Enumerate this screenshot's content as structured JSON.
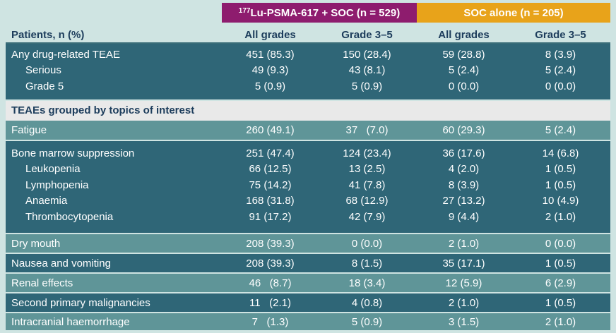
{
  "header": {
    "group_lu_iso": "177",
    "group_lu_rest": "Lu-PSMA-617 + SOC (n = 529)",
    "group_soc": "SOC alone (n = 205)",
    "patients_label": "Patients, n (%)",
    "cols": [
      "All grades",
      "Grade 3–5",
      "All grades",
      "Grade 3–5"
    ]
  },
  "colors": {
    "lu": "#8e1c6e",
    "soc": "#e8a31a",
    "dark_row": "#2f6677",
    "light_row": "#5f9598",
    "section_bg": "#e9e9e9"
  },
  "rows_top": [
    {
      "label": "Any drug-related TEAE",
      "v": [
        "451 (85.3)",
        "150 (28.4)",
        "59 (28.8)",
        "8 (3.9)"
      ]
    },
    {
      "label": "Serious",
      "v": [
        "49 (9.3)",
        "43 (8.1)",
        "5 (2.4)",
        "5 (2.4)"
      ]
    },
    {
      "label": "Grade 5",
      "v": [
        "5 (0.9)",
        "5 (0.9)",
        "0 (0.0)",
        "0 (0.0)"
      ]
    }
  ],
  "section_title": "TEAEs grouped by topics of interest",
  "fatigue": {
    "label": "Fatigue",
    "v": [
      "260 (49.1)",
      "37   (7.0)",
      "60 (29.3)",
      "5 (2.4)"
    ]
  },
  "bone": [
    {
      "label": "Bone marrow suppression",
      "v": [
        "251 (47.4)",
        "124 (23.4)",
        "36 (17.6)",
        "14 (6.8)"
      ]
    },
    {
      "label": "Leukopenia",
      "v": [
        "66 (12.5)",
        "13 (2.5)",
        "4 (2.0)",
        "1 (0.5)"
      ]
    },
    {
      "label": "Lymphopenia",
      "v": [
        "75 (14.2)",
        "41 (7.8)",
        "8 (3.9)",
        "1 (0.5)"
      ]
    },
    {
      "label": "Anaemia",
      "v": [
        "168 (31.8)",
        "68 (12.9)",
        "27 (13.2)",
        "10 (4.9)"
      ]
    },
    {
      "label": "Thrombocytopenia",
      "v": [
        "91 (17.2)",
        "42 (7.9)",
        "9 (4.4)",
        "2 (1.0)"
      ]
    }
  ],
  "rows_bottom": [
    {
      "label": "Dry mouth",
      "v": [
        "208 (39.3)",
        "0 (0.0)",
        "2 (1.0)",
        "0 (0.0)"
      ]
    },
    {
      "label": "Nausea and vomiting",
      "v": [
        "208 (39.3)",
        "8 (1.5)",
        "35 (17.1)",
        "1 (0.5)"
      ]
    },
    {
      "label": "Renal effects",
      "v": [
        "46   (8.7)",
        "18 (3.4)",
        "12 (5.9)",
        "6 (2.9)"
      ]
    },
    {
      "label": "Second primary malignancies",
      "v": [
        "11   (2.1)",
        "4 (0.8)",
        "2 (1.0)",
        "1 (0.5)"
      ]
    },
    {
      "label": "Intracranial haemorrhage",
      "v": [
        "7   (1.3)",
        "5 (0.9)",
        "3 (1.5)",
        "2 (1.0)"
      ]
    }
  ]
}
